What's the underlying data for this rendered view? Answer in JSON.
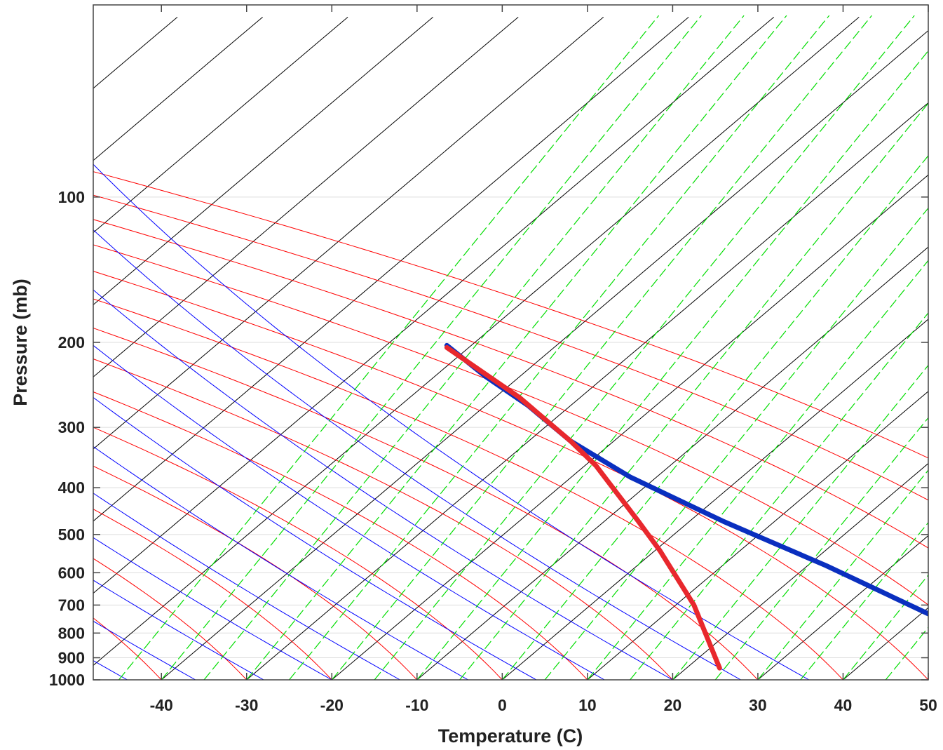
{
  "chart_data": {
    "type": "line",
    "title": "",
    "xlabel": "Temperature (C)",
    "ylabel": "Pressure (mb)",
    "xlim": [
      -48,
      50
    ],
    "ylim": [
      1000,
      40
    ],
    "y_scale": "log",
    "x_ticks": [
      -40,
      -30,
      -20,
      -10,
      0,
      10,
      20,
      30,
      40,
      50
    ],
    "x_tick_labels": [
      "-40",
      "-30",
      "-20",
      "-10",
      "0",
      "10",
      "20",
      "30",
      "40",
      "50"
    ],
    "y_ticks": [
      100,
      200,
      300,
      400,
      500,
      600,
      700,
      800,
      900,
      1000
    ],
    "y_tick_labels": [
      "100",
      "200",
      "300",
      "400",
      "500",
      "600",
      "700",
      "800",
      "900",
      "1000"
    ],
    "grid": true,
    "background_lines": {
      "isotherms_skewed_color": "#000000",
      "dry_adiabats_color": "#ff0000",
      "moist_adiabats_color": "#0000ff",
      "mixing_ratio_color": "#00dd00"
    },
    "series": [
      {
        "color": "#0a2fbf",
        "points": [
          {
            "x": 50,
            "y": 730
          },
          {
            "x": 38,
            "y": 580
          },
          {
            "x": 26,
            "y": 470
          },
          {
            "x": 15,
            "y": 380
          },
          {
            "x": 8,
            "y": 320
          },
          {
            "x": 3,
            "y": 270
          },
          {
            "x": -2,
            "y": 235
          },
          {
            "x": -6.5,
            "y": 203
          }
        ]
      },
      {
        "color": "#e8282d",
        "points": [
          {
            "x": 25.5,
            "y": 945
          },
          {
            "x": 22.5,
            "y": 700
          },
          {
            "x": 18.5,
            "y": 540
          },
          {
            "x": 16,
            "y": 470
          },
          {
            "x": 11,
            "y": 360
          },
          {
            "x": 8,
            "y": 320
          },
          {
            "x": 2,
            "y": 260
          },
          {
            "x": -6.5,
            "y": 205
          }
        ]
      }
    ]
  }
}
